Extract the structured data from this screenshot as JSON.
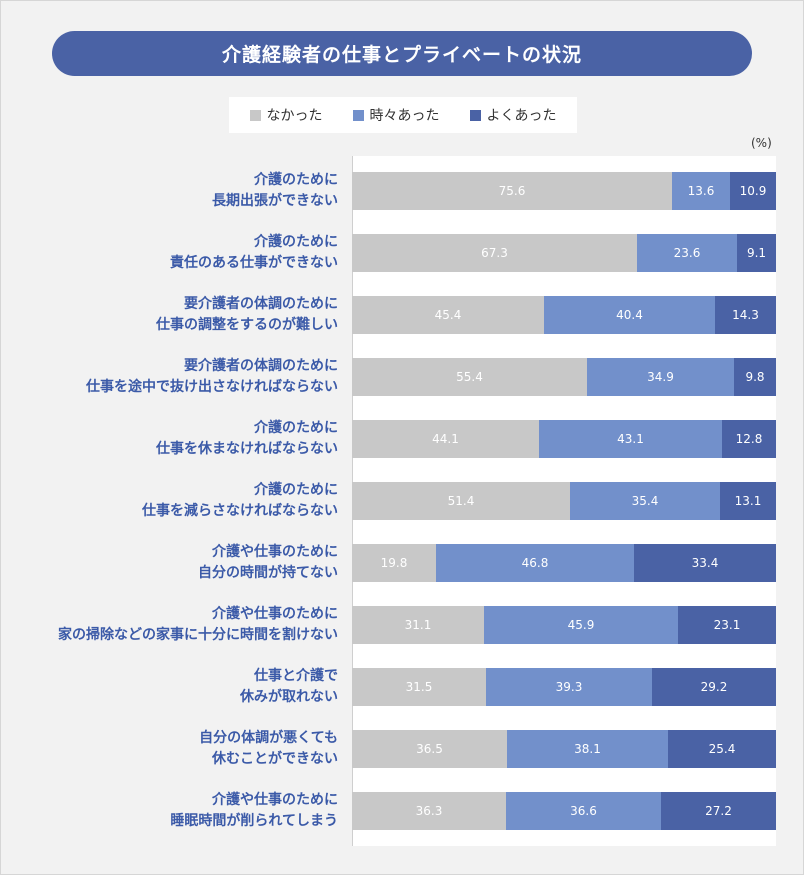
{
  "colors": {
    "title_bg": "#4a62a5",
    "label_text": "#3b5aa8",
    "none": "#c8c8c8",
    "sometimes": "#7290cb",
    "often": "#4a62a5"
  },
  "chart_data": {
    "type": "bar",
    "orientation": "horizontal",
    "stacked": true,
    "title": "介護経験者の仕事とプライベートの状況",
    "unit": "(%)",
    "xlim": [
      0,
      100
    ],
    "legend_position": "top",
    "categories": [
      [
        "介護のために",
        "長期出張ができない"
      ],
      [
        "介護のために",
        "責任のある仕事ができない"
      ],
      [
        "要介護者の体調のために",
        "仕事の調整をするのが難しい"
      ],
      [
        "要介護者の体調のために",
        "仕事を途中で抜け出さなければならない"
      ],
      [
        "介護のために",
        "仕事を休まなければならない"
      ],
      [
        "介護のために",
        "仕事を減らさなければならない"
      ],
      [
        "介護や仕事のために",
        "自分の時間が持てない"
      ],
      [
        "介護や仕事のために",
        "家の掃除などの家事に十分に時間を割けない"
      ],
      [
        "仕事と介護で",
        "休みが取れない"
      ],
      [
        "自分の体調が悪くても",
        "休むことができない"
      ],
      [
        "介護や仕事のために",
        "睡眠時間が削られてしまう"
      ]
    ],
    "series": [
      {
        "name": "なかった",
        "color": "#c8c8c8",
        "values": [
          75.6,
          67.3,
          45.4,
          55.4,
          44.1,
          51.4,
          19.8,
          31.1,
          31.5,
          36.5,
          36.3
        ]
      },
      {
        "name": "時々あった",
        "color": "#7290cb",
        "values": [
          13.6,
          23.6,
          40.4,
          34.9,
          43.1,
          35.4,
          46.8,
          45.9,
          39.3,
          38.1,
          36.6
        ]
      },
      {
        "name": "よくあった",
        "color": "#4a62a5",
        "values": [
          10.9,
          9.1,
          14.3,
          9.8,
          12.8,
          13.1,
          33.4,
          23.1,
          29.2,
          25.4,
          27.2
        ]
      }
    ]
  }
}
